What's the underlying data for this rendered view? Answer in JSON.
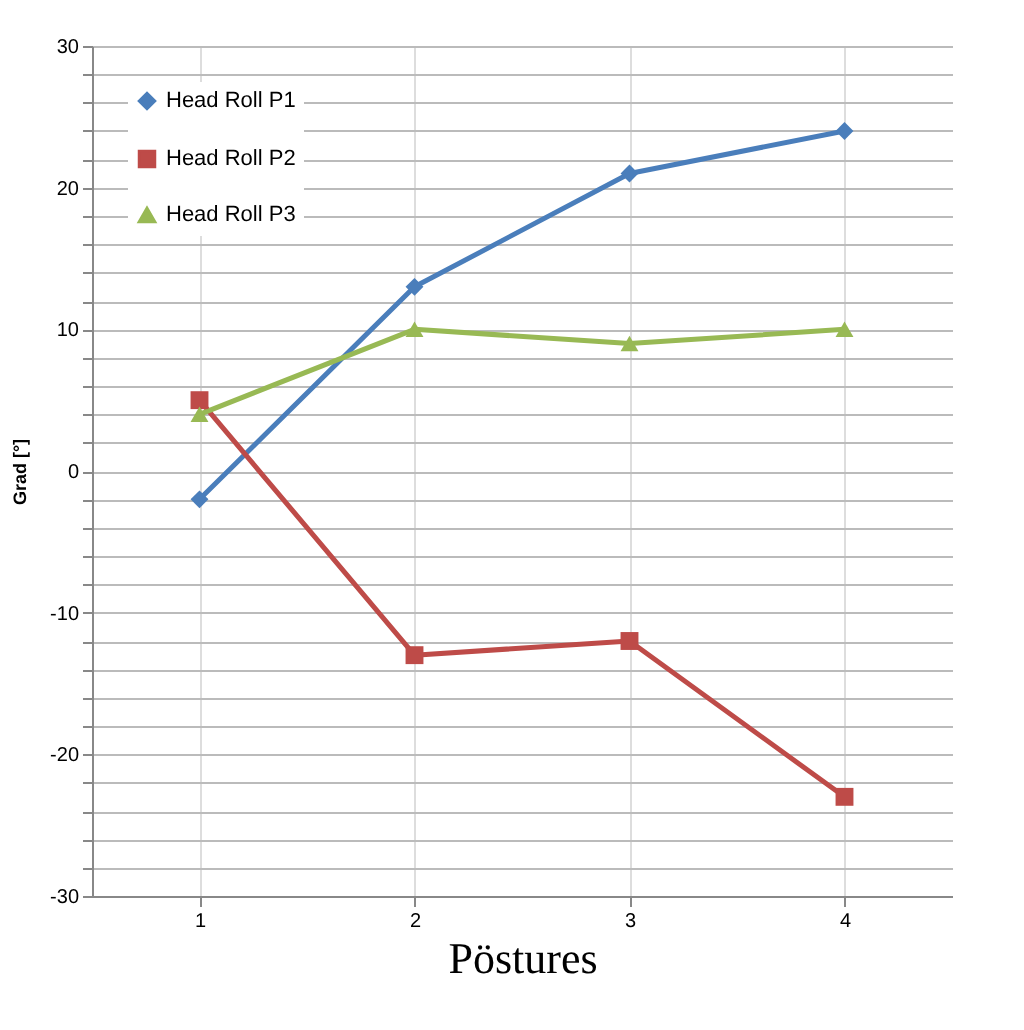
{
  "chart_data": {
    "type": "line",
    "xlabel": "Pöstures",
    "ylabel": "Grad [°]",
    "categories": [
      "1",
      "2",
      "3",
      "4"
    ],
    "series": [
      {
        "name": "Head Roll P1",
        "color": "#4a7ebb",
        "marker": "diamond",
        "values": [
          -2,
          13,
          21,
          24
        ]
      },
      {
        "name": "Head Roll P2",
        "color": "#be4b48",
        "marker": "square",
        "values": [
          5,
          -13,
          -12,
          -23
        ]
      },
      {
        "name": "Head Roll P3",
        "color": "#98b954",
        "marker": "triangle",
        "values": [
          4,
          10,
          9,
          10
        ]
      }
    ],
    "ylim": [
      -30,
      30
    ],
    "yticks": [
      -30,
      {
        "value": -28,
        "label": null
      },
      {
        "value": -26,
        "label": null
      },
      {
        "value": -24,
        "label": null
      },
      {
        "value": -22,
        "label": null
      },
      -20,
      {
        "value": -18,
        "label": null
      },
      {
        "value": -16,
        "label": null
      },
      {
        "value": -14,
        "label": null
      },
      {
        "value": -12,
        "label": null
      },
      -10,
      {
        "value": -8,
        "label": null
      },
      {
        "value": -6,
        "label": null
      },
      {
        "value": -4,
        "label": null
      },
      {
        "value": -2,
        "label": null
      },
      0,
      {
        "value": 2,
        "label": null
      },
      {
        "value": 4,
        "label": null
      },
      {
        "value": 6,
        "label": null
      },
      {
        "value": 8,
        "label": null
      },
      10,
      {
        "value": 12,
        "label": null
      },
      {
        "value": 14,
        "label": null
      },
      {
        "value": 16,
        "label": null
      },
      {
        "value": 18,
        "label": null
      },
      20,
      {
        "value": 22,
        "label": null
      },
      {
        "value": 24,
        "label": null
      },
      {
        "value": 26,
        "label": null
      },
      {
        "value": 28,
        "label": null
      },
      30
    ],
    "grid": true,
    "legend": "top left",
    "line_style": "solid"
  }
}
